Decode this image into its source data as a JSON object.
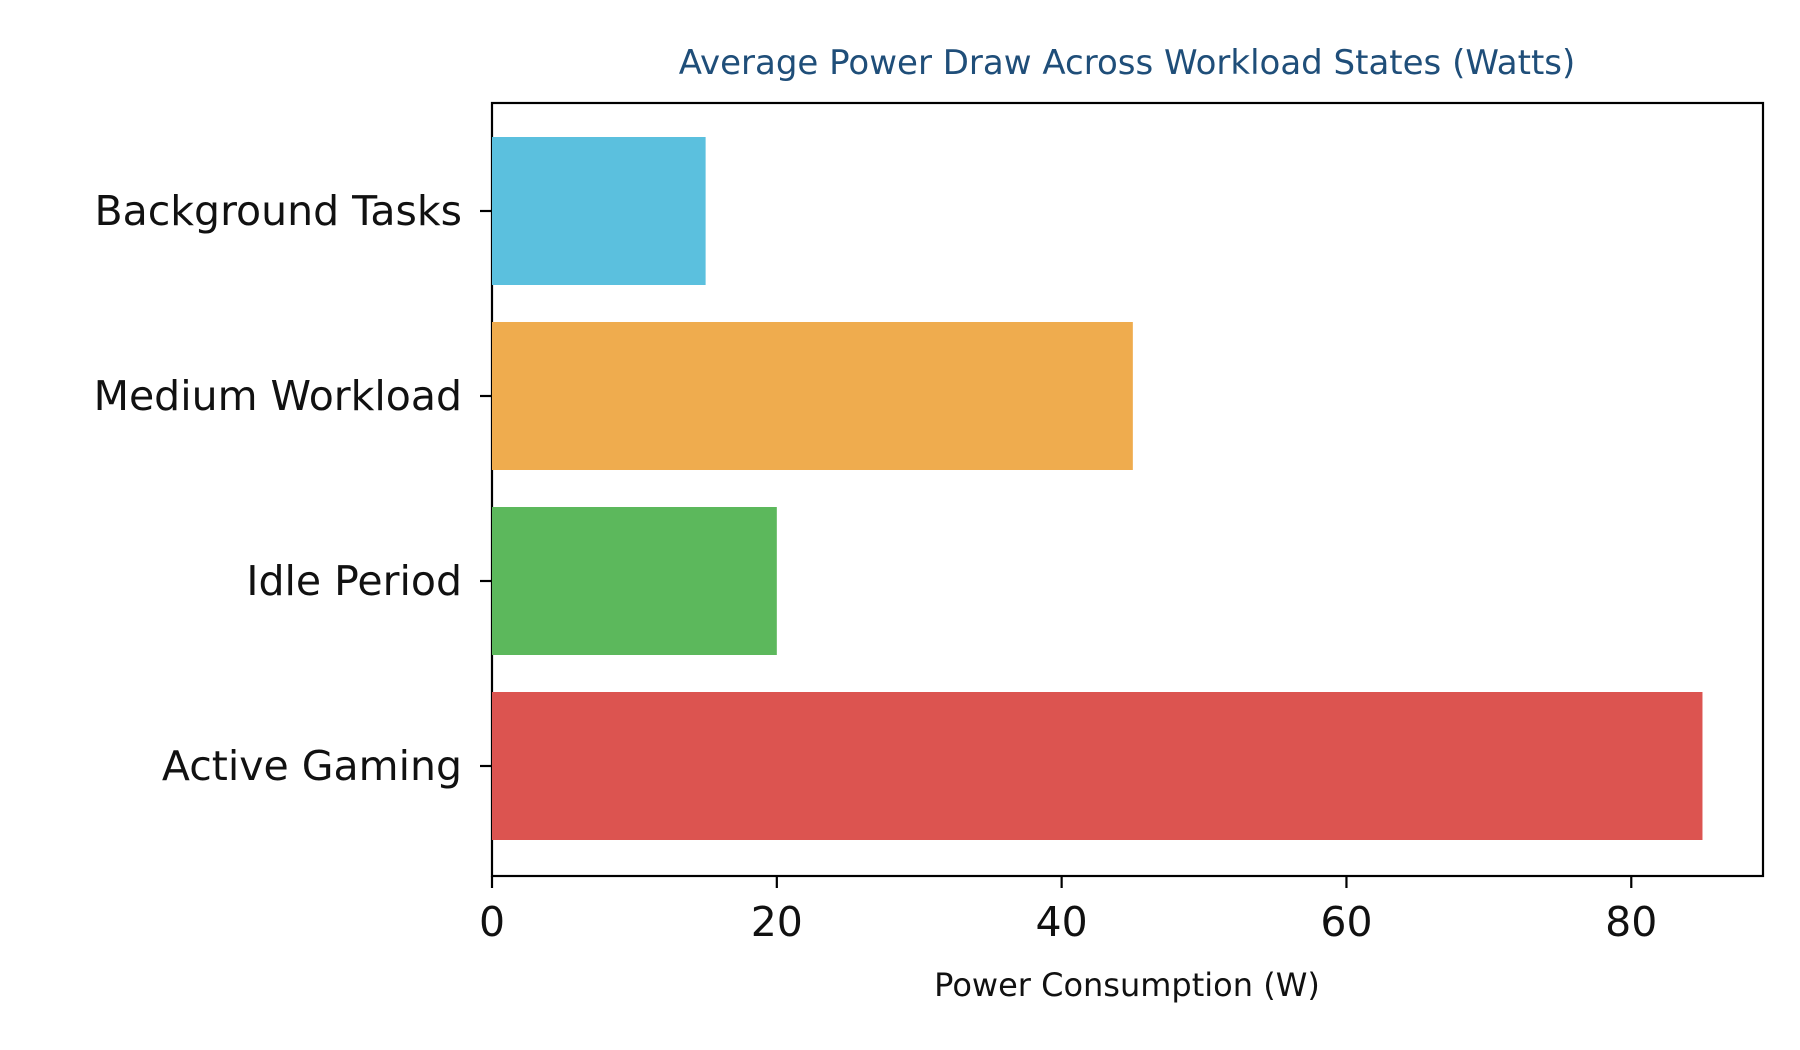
{
  "chart_data": {
    "type": "bar",
    "orientation": "horizontal",
    "title": "Average Power Draw Across Workload States (Watts)",
    "xlabel": "Power Consumption (W)",
    "ylabel": "",
    "categories": [
      "Active Gaming",
      "Idle Period",
      "Medium Workload",
      "Background Tasks"
    ],
    "values": [
      85,
      20,
      45,
      15
    ],
    "colors": [
      "#dc5450",
      "#5cb85c",
      "#efac4e",
      "#5bc0de"
    ],
    "title_color": "#1f4e79",
    "xlim": [
      0,
      89.25
    ],
    "xticks": [
      0,
      20,
      40,
      60,
      80
    ],
    "grid": false,
    "legend": "none"
  }
}
